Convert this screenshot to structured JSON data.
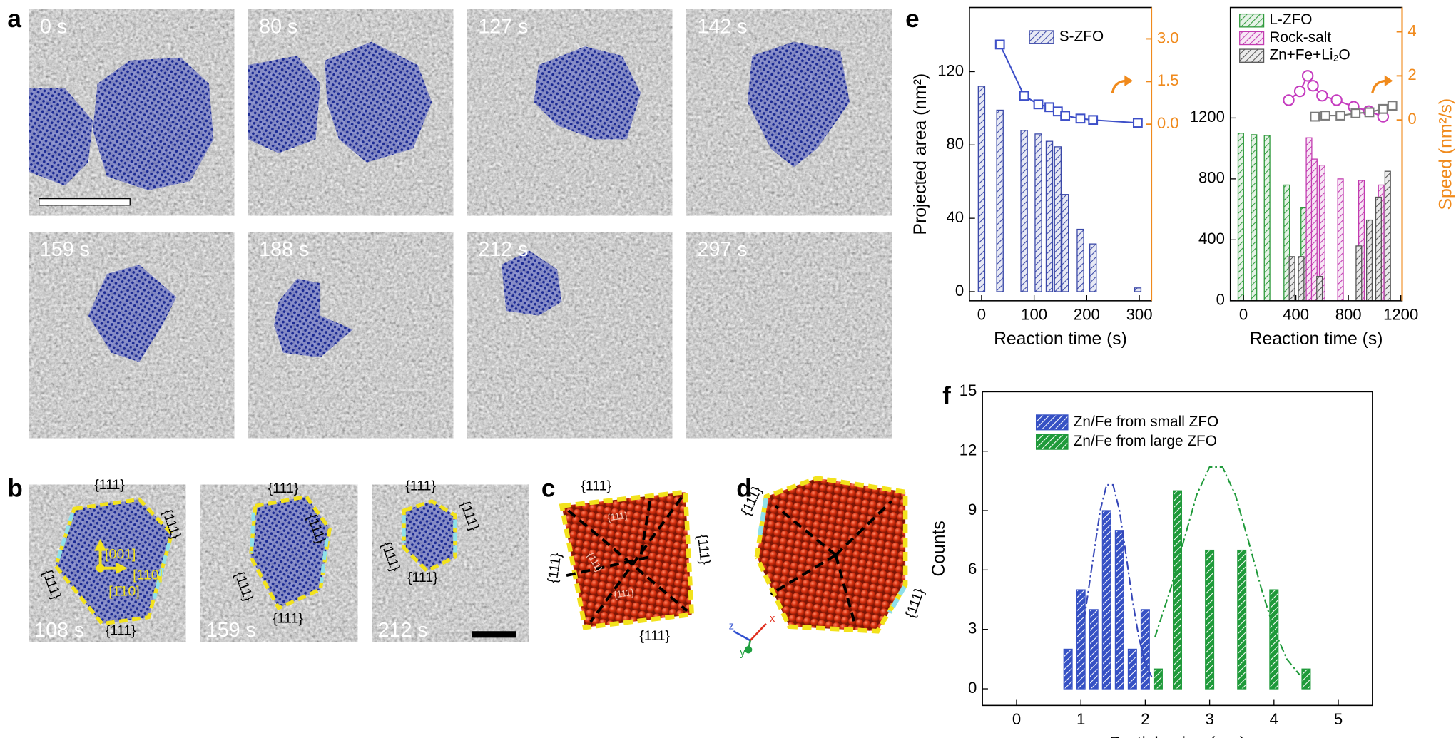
{
  "panel_labels": [
    "a",
    "b",
    "c",
    "d",
    "e",
    "f"
  ],
  "panel_a": {
    "times": [
      "0 s",
      "80 s",
      "127 s",
      "142 s",
      "159 s",
      "188 s",
      "212 s",
      "297 s"
    ]
  },
  "panel_b": {
    "tiles": [
      {
        "time": "108 s",
        "labels": [
          "{111}",
          "{111}",
          "{111}",
          "{111}"
        ]
      },
      {
        "time": "159 s",
        "labels": [
          "{111}",
          "{111}",
          "{111}",
          "{111}"
        ]
      },
      {
        "time": "212 s",
        "labels": [
          "{111}",
          "{111}",
          "{111}",
          "{111}"
        ]
      }
    ],
    "directions": [
      "[001]",
      "[110]",
      "[1̄10]"
    ]
  },
  "panel_c": {
    "labels": [
      "{111}",
      "{111}",
      "{111}",
      "{111}",
      "{111}",
      "{111}",
      "{111}"
    ]
  },
  "panel_d": {
    "labels": [
      "{111}",
      "{111}"
    ],
    "axes": [
      "z",
      "x",
      "y"
    ]
  },
  "chart_data": [
    {
      "type": "bar",
      "xlabel": "Reaction time (s)",
      "ylabel": "Projected area (nm²)",
      "xlim": [
        -23,
        323
      ],
      "xticks": [
        0,
        100,
        200,
        300
      ],
      "ylim": [
        -5,
        155
      ],
      "yticks": [
        0,
        40,
        80,
        120
      ],
      "y2lim": [
        -6.2,
        4.1
      ],
      "y2ticks": [
        {
          "value": 0,
          "label": "0.0"
        },
        1.5,
        {
          "value": 3,
          "label": "3.0"
        }
      ],
      "y2_color": "#f08a1c",
      "legend": "upper center",
      "series": [
        {
          "name": "S-ZFO",
          "color": "#3a48a8",
          "hatch": "light",
          "x": [
            0,
            35,
            81,
            108,
            129,
            145,
            159,
            188,
            212,
            297
          ],
          "values": [
            112,
            99,
            88,
            86,
            82,
            79,
            53,
            34,
            26,
            2
          ]
        },
        {
          "type": "line",
          "axis": "y2",
          "marker": "square",
          "color": "#3d4fc8",
          "x": [
            35,
            81,
            108,
            129,
            145,
            159,
            188,
            212,
            297
          ],
          "values": [
            2.8,
            1.0,
            0.7,
            0.6,
            0.45,
            0.3,
            0.2,
            0.15,
            0.05
          ]
        }
      ]
    },
    {
      "type": "bar",
      "xlabel": "Reaction time (s)",
      "y2label": "Speed (nm²/s)",
      "xlim": [
        -100,
        1210
      ],
      "xticks": [
        0,
        400,
        800,
        1200
      ],
      "ylim": [
        0,
        1925
      ],
      "yticks": [
        0,
        400,
        800,
        1200
      ],
      "y2lim": [
        -8.2,
        5.1
      ],
      "y2ticks": [
        0,
        2,
        4
      ],
      "y2_color": "#f08a1c",
      "legend": "upper left",
      "series": [
        {
          "name": "L-ZFO",
          "color": "#2f9a3c",
          "hatch": "light",
          "x": [
            -20,
            80,
            180,
            330,
            460,
            560
          ],
          "values": [
            1100,
            1090,
            1085,
            760,
            610,
            140
          ]
        },
        {
          "name": "Rock-salt",
          "color": "#c23bb0",
          "hatch": "light",
          "x": [
            500,
            540,
            600,
            740,
            900,
            1050
          ],
          "values": [
            1070,
            930,
            890,
            800,
            790,
            760
          ]
        },
        {
          "name": "Zn+Fe+Li₂O",
          "color": "#555555",
          "hatch": "light",
          "x": [
            370,
            440,
            580,
            880,
            960,
            1030,
            1100
          ],
          "values": [
            290,
            290,
            160,
            360,
            530,
            680,
            850
          ]
        },
        {
          "type": "line",
          "axis": "y2",
          "marker": "circle",
          "color": "#c53bbf",
          "x": [
            345,
            430,
            490,
            530,
            600,
            710,
            840,
            955,
            1065
          ],
          "values": [
            0.9,
            1.3,
            2.0,
            1.55,
            1.1,
            0.9,
            0.6,
            0.4,
            0.15
          ]
        },
        {
          "type": "line",
          "axis": "y2",
          "marker": "square",
          "color": "#7a7a7a",
          "x": [
            545,
            625,
            740,
            855,
            960,
            1065,
            1135
          ],
          "values": [
            0.15,
            0.2,
            0.2,
            0.3,
            0.35,
            0.5,
            0.65
          ]
        }
      ]
    },
    {
      "type": "bar",
      "xlabel": "Particle size (nm)",
      "ylabel": "Counts",
      "xlim": [
        -0.53,
        5.53
      ],
      "xticks": [
        0,
        1,
        2,
        3,
        4,
        5
      ],
      "ylim": [
        -0.84,
        15
      ],
      "yticks": [
        0,
        3,
        6,
        9,
        12,
        15
      ],
      "legend": "upper left",
      "series": [
        {
          "name": "Zn/Fe from small ZFO",
          "color": "#3651c4",
          "hatch": "dark",
          "x": [
            0.8,
            1.0,
            1.2,
            1.4,
            1.6,
            1.8,
            2.0
          ],
          "values": [
            2,
            5,
            4,
            9,
            8,
            2,
            4
          ]
        },
        {
          "name": "Zn/Fe from large ZFO",
          "color": "#1f9a3a",
          "hatch": "dark",
          "x": [
            2.2,
            2.5,
            3.0,
            3.5,
            4.0,
            4.5
          ],
          "values": [
            1,
            10,
            7,
            7,
            5,
            1
          ]
        },
        {
          "type": "line",
          "style": "dash-dot",
          "color": "#3546b8",
          "x": [
            1.05,
            1.2,
            1.3,
            1.4,
            1.5,
            1.6,
            1.7,
            1.8,
            1.9,
            2.0,
            2.1
          ],
          "values": [
            3.5,
            6.8,
            9.0,
            10.3,
            10.3,
            9.0,
            6.8,
            4.5,
            2.6,
            1.3,
            0.6
          ]
        },
        {
          "type": "line",
          "style": "dash-dot",
          "color": "#1f9a3a",
          "x": [
            2.15,
            2.4,
            2.6,
            2.8,
            3.0,
            3.2,
            3.4,
            3.6,
            3.8,
            4.0,
            4.2,
            4.4
          ],
          "values": [
            2.6,
            5.1,
            7.5,
            9.8,
            11.2,
            11.2,
            9.8,
            7.5,
            5.1,
            3.0,
            1.5,
            0.7
          ]
        }
      ]
    }
  ]
}
